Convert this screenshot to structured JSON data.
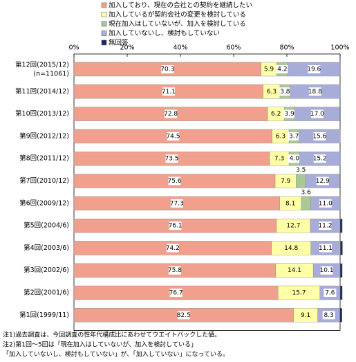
{
  "chart_data": {
    "type": "stacked-bar-horizontal",
    "categories": [
      "第12回(2015/12)",
      "第11回(2014/12)",
      "第10回(2013/12)",
      "第9回(2012/12)",
      "第8回(2011/12)",
      "第7回(2010/12)",
      "第6回(2009/12)",
      "第5回(2004/6)",
      "第4回(2003/6)",
      "第3回(2002/6)",
      "第2回(2001/6)",
      "第1回(1999/11)"
    ],
    "category_note": "(n=11061)",
    "series": [
      {
        "name": "加入しており、現在の会社との契約を継続したい",
        "color": "#f0a08c",
        "values": [
          70.3,
          71.1,
          72.8,
          74.5,
          73.5,
          75.6,
          77.3,
          76.1,
          74.2,
          75.8,
          76.7,
          82.5
        ]
      },
      {
        "name": "加入しているが契約会社の変更を検討している",
        "color": "#ffffa8",
        "values": [
          5.9,
          6.3,
          6.2,
          6.3,
          7.3,
          7.9,
          8.1,
          12.7,
          14.8,
          14.1,
          15.7,
          9.1
        ]
      },
      {
        "name": "現在加入はしていないが、加入を検討している",
        "color": "#a8c898",
        "values": [
          4.2,
          3.8,
          3.9,
          3.7,
          4.0,
          3.5,
          3.6,
          null,
          null,
          null,
          null,
          null
        ],
        "value_labels": [
          "4.2",
          "3.8",
          "3.9",
          "3.7",
          "4.0",
          "3.5",
          "3.6",
          null,
          null,
          null,
          null,
          null
        ]
      },
      {
        "name": "加入していないし、検討もしていない",
        "color": "#a8acd8",
        "values": [
          19.6,
          18.8,
          17.0,
          15.6,
          15.2,
          12.9,
          11.0,
          11.2,
          11.1,
          10.1,
          7.6,
          8.3
        ],
        "value_labels": [
          "19.6",
          "18.8",
          "17.0",
          "15.6",
          "15.2",
          "12.9",
          "11.0",
          "11.2",
          "11.1",
          "10.1",
          "7.6",
          "8.3"
        ]
      },
      {
        "name": "無回答",
        "color": "#1c2a5c",
        "values": [
          null,
          null,
          null,
          null,
          null,
          null,
          null,
          0.8,
          0.8,
          0.8,
          0.8,
          0.8
        ]
      }
    ],
    "xlim": [
      0,
      100
    ],
    "xticks": [
      {
        "value": 0,
        "label": "0%"
      },
      {
        "value": 20,
        "label": "20%"
      },
      {
        "value": 40,
        "label": "40%"
      },
      {
        "value": 60,
        "label": "60%"
      },
      {
        "value": 80,
        "label": "80%"
      },
      {
        "value": 100,
        "label": "100%"
      }
    ],
    "notes": [
      "注1)過去調査は、今回調査の性年代構成比にあわせてウエイトバックした値。",
      "注2)第1回～5回は「現在加入はしていないが、加入を検討している」",
      "「加入していないし、検討もしていない」が、「加入していない」になっている。"
    ]
  }
}
